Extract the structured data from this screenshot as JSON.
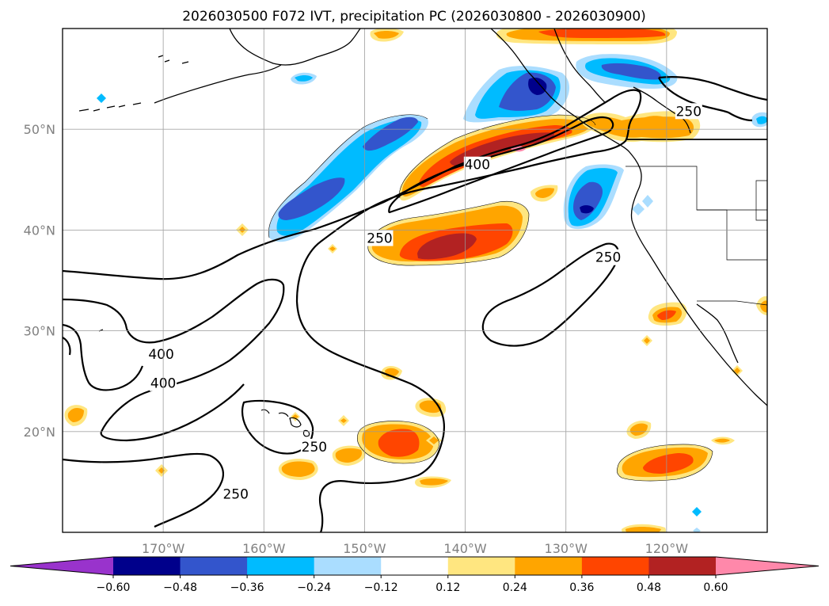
{
  "chart_data": {
    "type": "contour-map",
    "title": "2026030500 F072 IVT, precipitation PC (2026030800 - 2026030900)",
    "map": {
      "lon_range": [
        -180,
        -110
      ],
      "lat_range": [
        10,
        60
      ],
      "lon_ticks": [
        -170,
        -160,
        -150,
        -140,
        -130,
        -120
      ],
      "lon_tick_labels": [
        "170°W",
        "160°W",
        "150°W",
        "140°W",
        "130°W",
        "120°W"
      ],
      "lat_ticks": [
        20,
        30,
        40,
        50
      ],
      "lat_tick_labels": [
        "20°N",
        "30°N",
        "40°N",
        "50°N"
      ],
      "grid": true
    },
    "colorbar": {
      "levels": [
        -0.6,
        -0.48,
        -0.36,
        -0.24,
        -0.12,
        0.12,
        0.24,
        0.36,
        0.48,
        0.6
      ],
      "tick_labels": [
        "−0.60",
        "−0.48",
        "−0.36",
        "−0.24",
        "−0.12",
        "0.12",
        "0.24",
        "0.36",
        "0.48",
        "0.60"
      ],
      "colors": [
        "#9933cc",
        "#00008b",
        "#3355cc",
        "#00bbff",
        "#aaddff",
        "#ffffff",
        "#ffe680",
        "#ffa500",
        "#ff4500",
        "#b22222",
        "#ff88aa"
      ],
      "extend": "both"
    },
    "ivt_contours": {
      "levels": [
        250,
        400
      ],
      "labels": [
        {
          "text": "250",
          "lon": -148.5,
          "lat": 39.2
        },
        {
          "text": "400",
          "lon": -138.8,
          "lat": 46.5
        },
        {
          "text": "250",
          "lon": -117.8,
          "lat": 51.8
        },
        {
          "text": "250",
          "lon": -125.8,
          "lat": 37.3
        },
        {
          "text": "400",
          "lon": -170.2,
          "lat": 27.7
        },
        {
          "text": "400",
          "lon": -170.0,
          "lat": 24.8
        },
        {
          "text": "250",
          "lon": -155.0,
          "lat": 18.5
        },
        {
          "text": "250",
          "lon": -162.8,
          "lat": 13.8
        }
      ]
    }
  }
}
